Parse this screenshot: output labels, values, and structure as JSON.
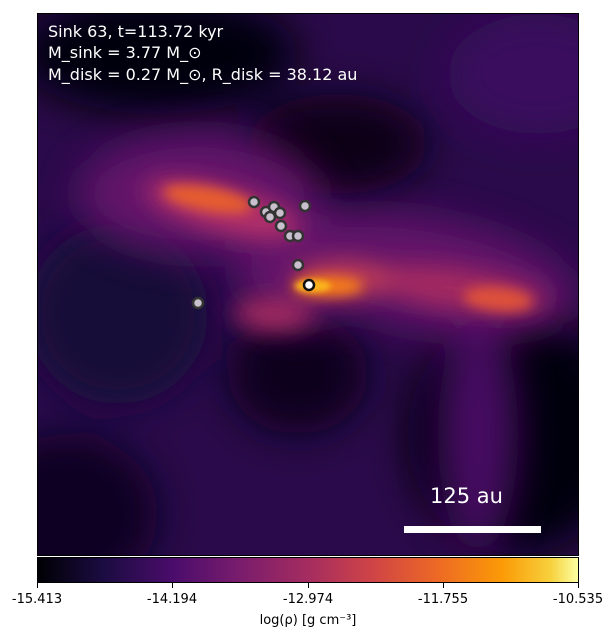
{
  "annotations": {
    "line1": "Sink 63, t=113.72 kyr",
    "line2": "M_sink = 3.77 M_⊙",
    "line3": "M_disk = 0.27 M_⊙, R_disk = 38.12 au"
  },
  "scalebar": {
    "label": "125 au"
  },
  "colorbar": {
    "colormap": "inferno",
    "ticks": [
      "-15.413",
      "-14.194",
      "-12.974",
      "-11.755",
      "-10.535"
    ],
    "label": "log(ρ) [g cm⁻³]"
  },
  "colors": {
    "background": "#0a0418",
    "sink_fill": "#c8c0cc",
    "sink_edge": "#333333",
    "primary_sink_fill": "#ffffff"
  }
}
